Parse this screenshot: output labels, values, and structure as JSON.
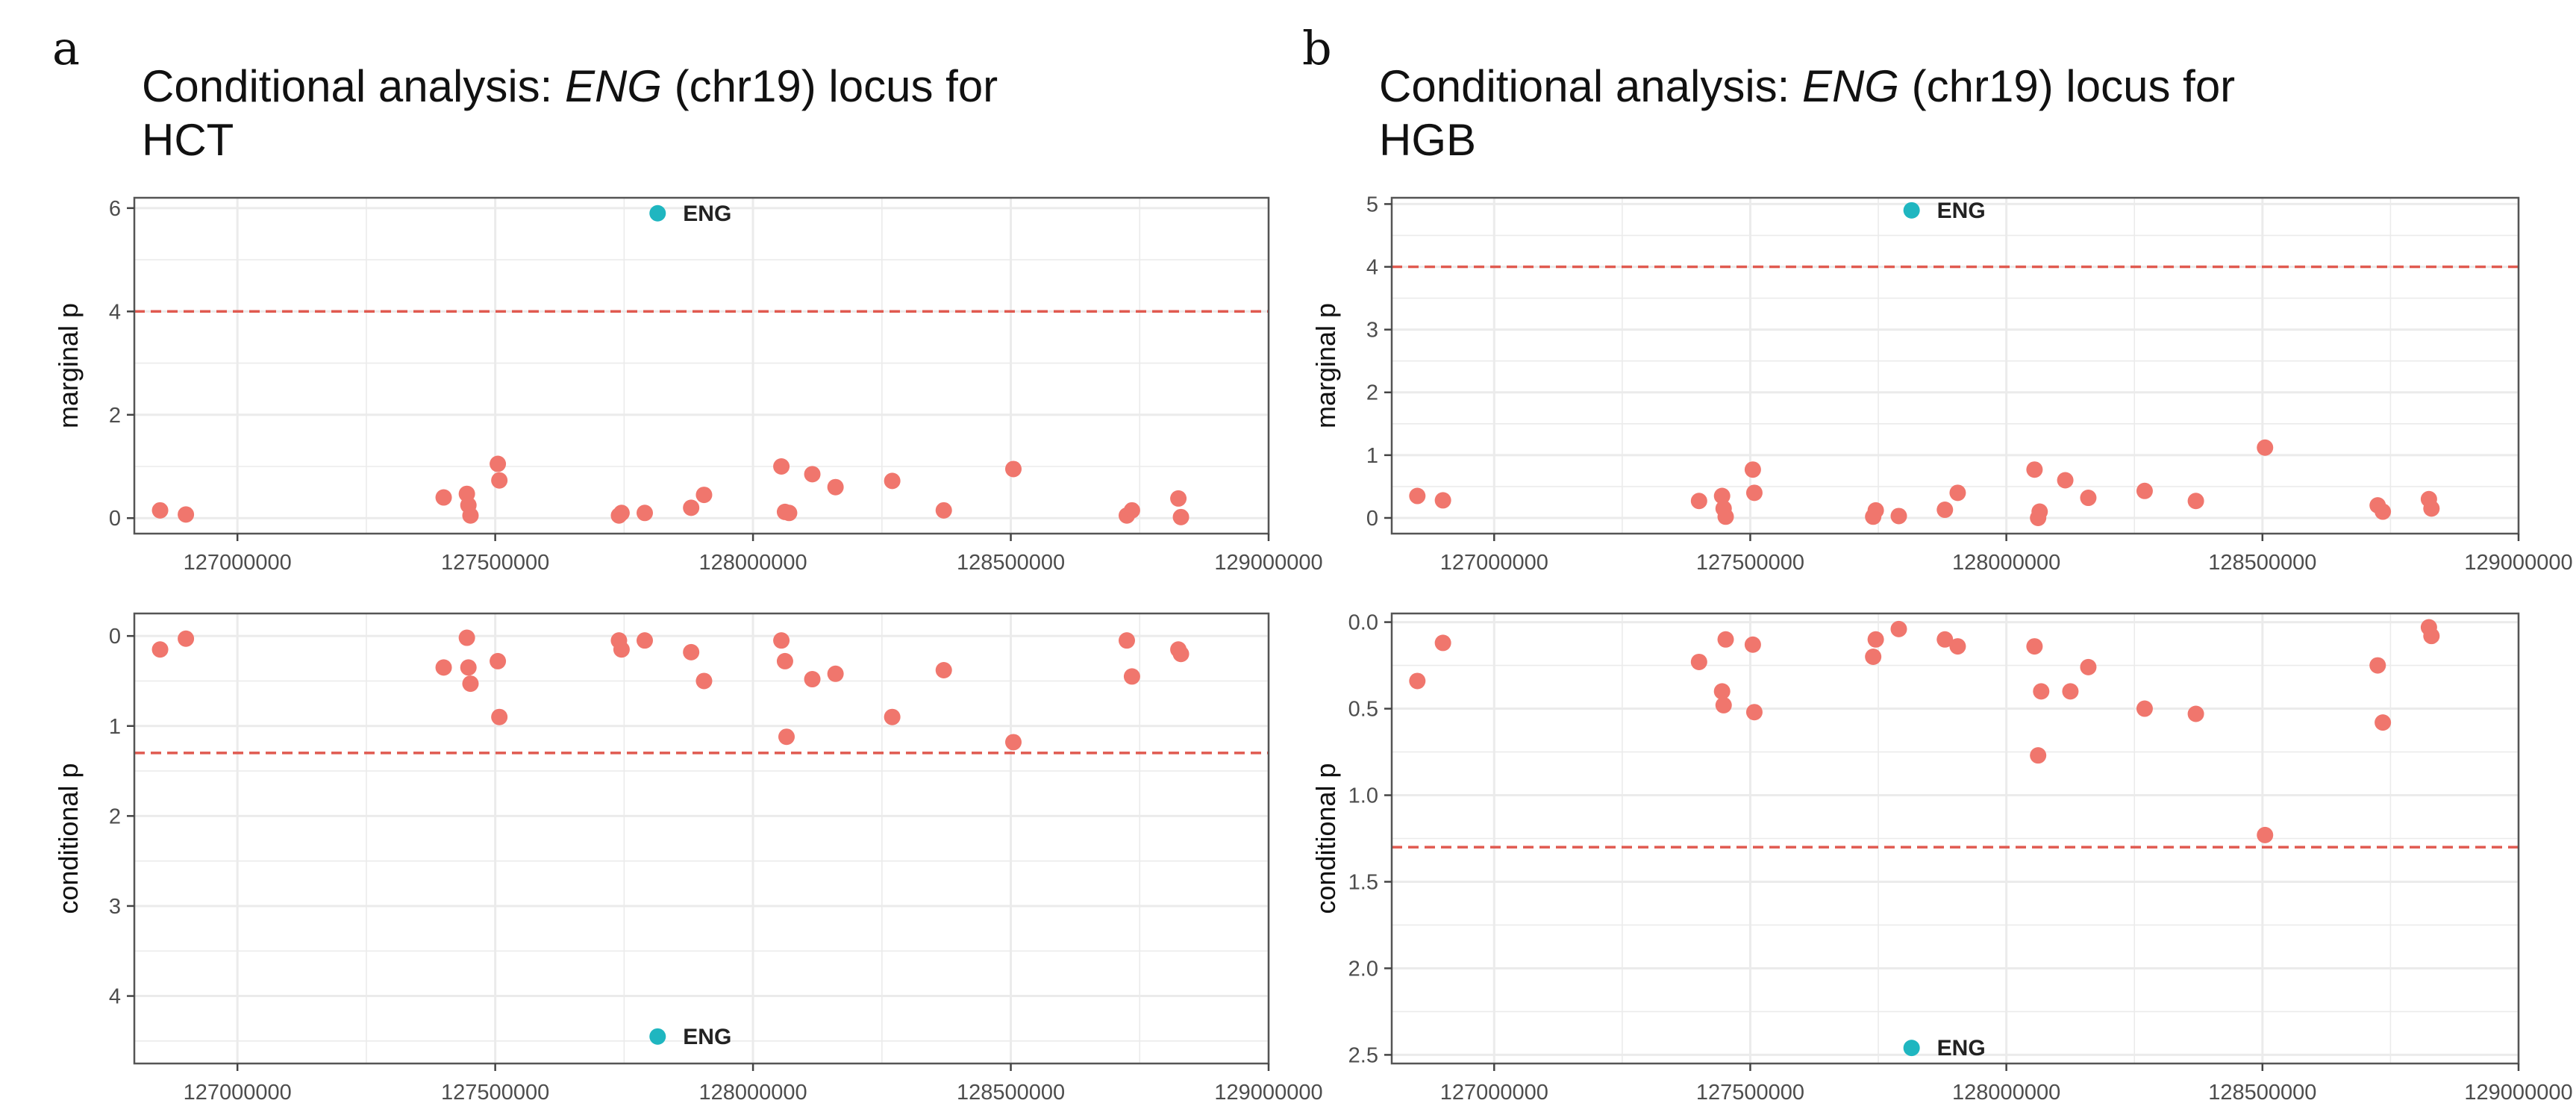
{
  "panels": [
    {
      "letter": "a",
      "title": {
        "prefix": "Conditional analysis: ",
        "gene": "ENG",
        "suffix": " (chr19) locus for",
        "trait": "HCT"
      }
    },
    {
      "letter": "b",
      "title": {
        "prefix": "Conditional analysis: ",
        "gene": "ENG",
        "suffix": " (chr19) locus for",
        "trait": "HGB"
      }
    }
  ],
  "colors": {
    "point": "#F0766D",
    "highlight": "#1FB6C0",
    "threshold": "#E05A50",
    "grid": "#EBEBEB",
    "frame": "#555555"
  },
  "chart_data": [
    {
      "id": "a-marginal",
      "type": "scatter",
      "ylabel": "marginal p",
      "xlim": [
        126800000,
        129000000
      ],
      "ylim": [
        -0.3,
        6.2
      ],
      "y_reversed": false,
      "xticks": [
        127000000,
        127500000,
        128000000,
        128500000,
        129000000
      ],
      "xtick_labels": [
        "127000000",
        "127500000",
        "128000000",
        "128500000",
        "129000000"
      ],
      "yticks": [
        0,
        2,
        4,
        6
      ],
      "ytick_labels": [
        "0",
        "2",
        "4",
        "6"
      ],
      "threshold": 4.0,
      "grid": true,
      "points": [
        [
          126850000,
          0.15
        ],
        [
          126900000,
          0.07
        ],
        [
          127400000,
          0.4
        ],
        [
          127445000,
          0.47
        ],
        [
          127448000,
          0.25
        ],
        [
          127452000,
          0.05
        ],
        [
          127505000,
          1.05
        ],
        [
          127508000,
          0.73
        ],
        [
          127740000,
          0.05
        ],
        [
          127745000,
          0.1
        ],
        [
          127790000,
          0.1
        ],
        [
          127880000,
          0.2
        ],
        [
          127905000,
          0.45
        ],
        [
          128055000,
          1.0
        ],
        [
          128062000,
          0.12
        ],
        [
          128070000,
          0.1
        ],
        [
          128115000,
          0.85
        ],
        [
          128160000,
          0.6
        ],
        [
          128270000,
          0.72
        ],
        [
          128370000,
          0.15
        ],
        [
          128505000,
          0.95
        ],
        [
          128725000,
          0.05
        ],
        [
          128735000,
          0.15
        ],
        [
          128825000,
          0.38
        ],
        [
          128830000,
          0.02
        ]
      ],
      "highlight": {
        "x": 127815000,
        "y": 5.9,
        "label": "ENG"
      }
    },
    {
      "id": "a-conditional",
      "type": "scatter",
      "ylabel": "conditional p",
      "xlim": [
        126800000,
        129000000
      ],
      "ylim": [
        -0.25,
        4.75
      ],
      "y_reversed": true,
      "xticks": [
        127000000,
        127500000,
        128000000,
        128500000,
        129000000
      ],
      "xtick_labels": [
        "127000000",
        "127500000",
        "128000000",
        "128500000",
        "129000000"
      ],
      "yticks": [
        0,
        1,
        2,
        3,
        4
      ],
      "ytick_labels": [
        "0",
        "1",
        "2",
        "3",
        "4"
      ],
      "threshold": 1.3,
      "grid": true,
      "points": [
        [
          126850000,
          0.15
        ],
        [
          126900000,
          0.03
        ],
        [
          127400000,
          0.35
        ],
        [
          127445000,
          0.02
        ],
        [
          127448000,
          0.35
        ],
        [
          127452000,
          0.53
        ],
        [
          127505000,
          0.28
        ],
        [
          127508000,
          0.9
        ],
        [
          127740000,
          0.05
        ],
        [
          127745000,
          0.15
        ],
        [
          127790000,
          0.05
        ],
        [
          127880000,
          0.18
        ],
        [
          127905000,
          0.5
        ],
        [
          128055000,
          0.05
        ],
        [
          128062000,
          0.28
        ],
        [
          128065000,
          1.12
        ],
        [
          128115000,
          0.48
        ],
        [
          128160000,
          0.42
        ],
        [
          128270000,
          0.9
        ],
        [
          128370000,
          0.38
        ],
        [
          128505000,
          1.18
        ],
        [
          128725000,
          0.05
        ],
        [
          128735000,
          0.45
        ],
        [
          128825000,
          0.15
        ],
        [
          128830000,
          0.2
        ]
      ],
      "highlight": {
        "x": 127815000,
        "y": 4.45,
        "label": "ENG"
      }
    },
    {
      "id": "b-marginal",
      "type": "scatter",
      "ylabel": "marginal p",
      "xlim": [
        126800000,
        129000000
      ],
      "ylim": [
        -0.25,
        5.1
      ],
      "y_reversed": false,
      "xticks": [
        127000000,
        127500000,
        128000000,
        128500000,
        129000000
      ],
      "xtick_labels": [
        "127000000",
        "127500000",
        "128000000",
        "128500000",
        "129000000"
      ],
      "yticks": [
        0,
        1,
        2,
        3,
        4,
        5
      ],
      "ytick_labels": [
        "0",
        "1",
        "2",
        "3",
        "4",
        "5"
      ],
      "threshold": 4.0,
      "grid": true,
      "points": [
        [
          126850000,
          0.35
        ],
        [
          126900000,
          0.28
        ],
        [
          127400000,
          0.27
        ],
        [
          127445000,
          0.35
        ],
        [
          127448000,
          0.15
        ],
        [
          127452000,
          0.02
        ],
        [
          127505000,
          0.77
        ],
        [
          127508000,
          0.4
        ],
        [
          127740000,
          0.02
        ],
        [
          127745000,
          0.12
        ],
        [
          127790000,
          0.03
        ],
        [
          127880000,
          0.13
        ],
        [
          127905000,
          0.4
        ],
        [
          128055000,
          0.77
        ],
        [
          128062000,
          0.0
        ],
        [
          128065000,
          0.1
        ],
        [
          128115000,
          0.6
        ],
        [
          128160000,
          0.32
        ],
        [
          128270000,
          0.43
        ],
        [
          128370000,
          0.27
        ],
        [
          128505000,
          1.12
        ],
        [
          128725000,
          0.2
        ],
        [
          128735000,
          0.1
        ],
        [
          128825000,
          0.3
        ],
        [
          128830000,
          0.15
        ]
      ],
      "highlight": {
        "x": 127815000,
        "y": 4.9,
        "label": "ENG"
      }
    },
    {
      "id": "b-conditional",
      "type": "scatter",
      "ylabel": "conditional p",
      "xlim": [
        126800000,
        129000000
      ],
      "ylim": [
        -0.05,
        2.55
      ],
      "y_reversed": true,
      "xticks": [
        127000000,
        127500000,
        128000000,
        128500000,
        129000000
      ],
      "xtick_labels": [
        "127000000",
        "127500000",
        "128000000",
        "128500000",
        "129000000"
      ],
      "yticks": [
        0.0,
        0.5,
        1.0,
        1.5,
        2.0,
        2.5
      ],
      "ytick_labels": [
        "0.0",
        "0.5",
        "1.0",
        "1.5",
        "2.0",
        "2.5"
      ],
      "threshold": 1.3,
      "grid": true,
      "points": [
        [
          126850000,
          0.34
        ],
        [
          126900000,
          0.12
        ],
        [
          127400000,
          0.23
        ],
        [
          127445000,
          0.4
        ],
        [
          127448000,
          0.48
        ],
        [
          127452000,
          0.1
        ],
        [
          127505000,
          0.13
        ],
        [
          127508000,
          0.52
        ],
        [
          127740000,
          0.2
        ],
        [
          127745000,
          0.1
        ],
        [
          127790000,
          0.04
        ],
        [
          127880000,
          0.1
        ],
        [
          127905000,
          0.14
        ],
        [
          128055000,
          0.14
        ],
        [
          128062000,
          0.77
        ],
        [
          128068000,
          0.4
        ],
        [
          128125000,
          0.4
        ],
        [
          128160000,
          0.26
        ],
        [
          128270000,
          0.5
        ],
        [
          128370000,
          0.53
        ],
        [
          128505000,
          1.23
        ],
        [
          128725000,
          0.25
        ],
        [
          128735000,
          0.58
        ],
        [
          128825000,
          0.03
        ],
        [
          128830000,
          0.08
        ]
      ],
      "highlight": {
        "x": 127815000,
        "y": 2.46,
        "label": "ENG"
      }
    }
  ]
}
